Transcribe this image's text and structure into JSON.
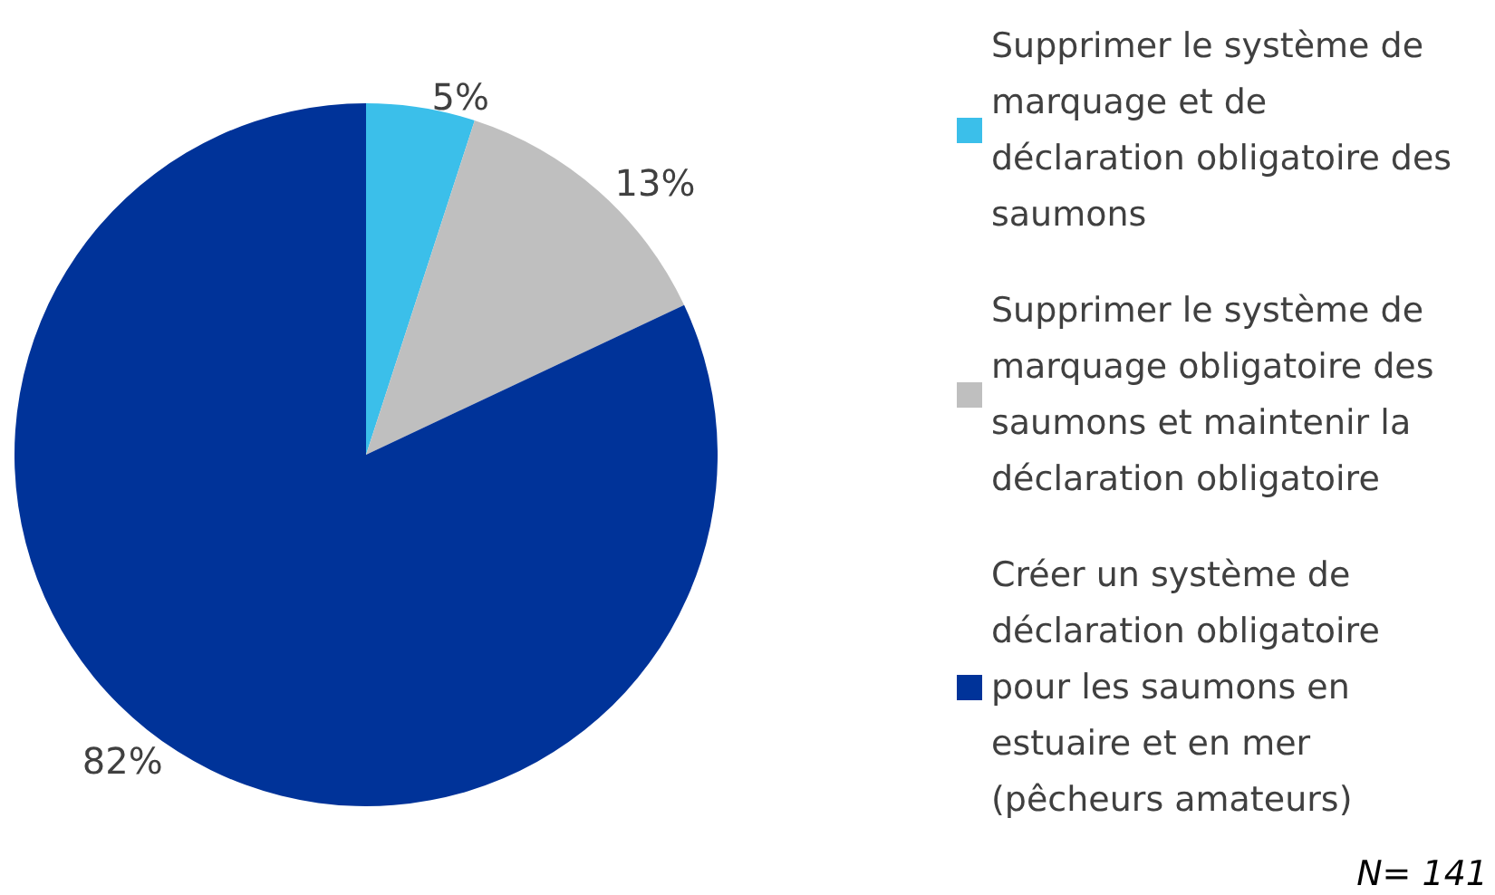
{
  "chart_data": {
    "type": "pie",
    "categories": [
      "Supprimer le système de marquage et de déclaration obligatoire des saumons",
      "Supprimer le système de marquage obligatoire des saumons et maintenir la déclaration obligatoire",
      "Créer un système de déclaration obligatoire pour les saumons en estuaire et en mer (pêcheurs amateurs)"
    ],
    "values": [
      5,
      13,
      82
    ],
    "value_labels": [
      "5%",
      "13%",
      "82%"
    ],
    "colors": [
      "#3bbfea",
      "#bfbfbf",
      "#003399"
    ],
    "legend": "right",
    "annotations": [
      "N= 141"
    ]
  }
}
